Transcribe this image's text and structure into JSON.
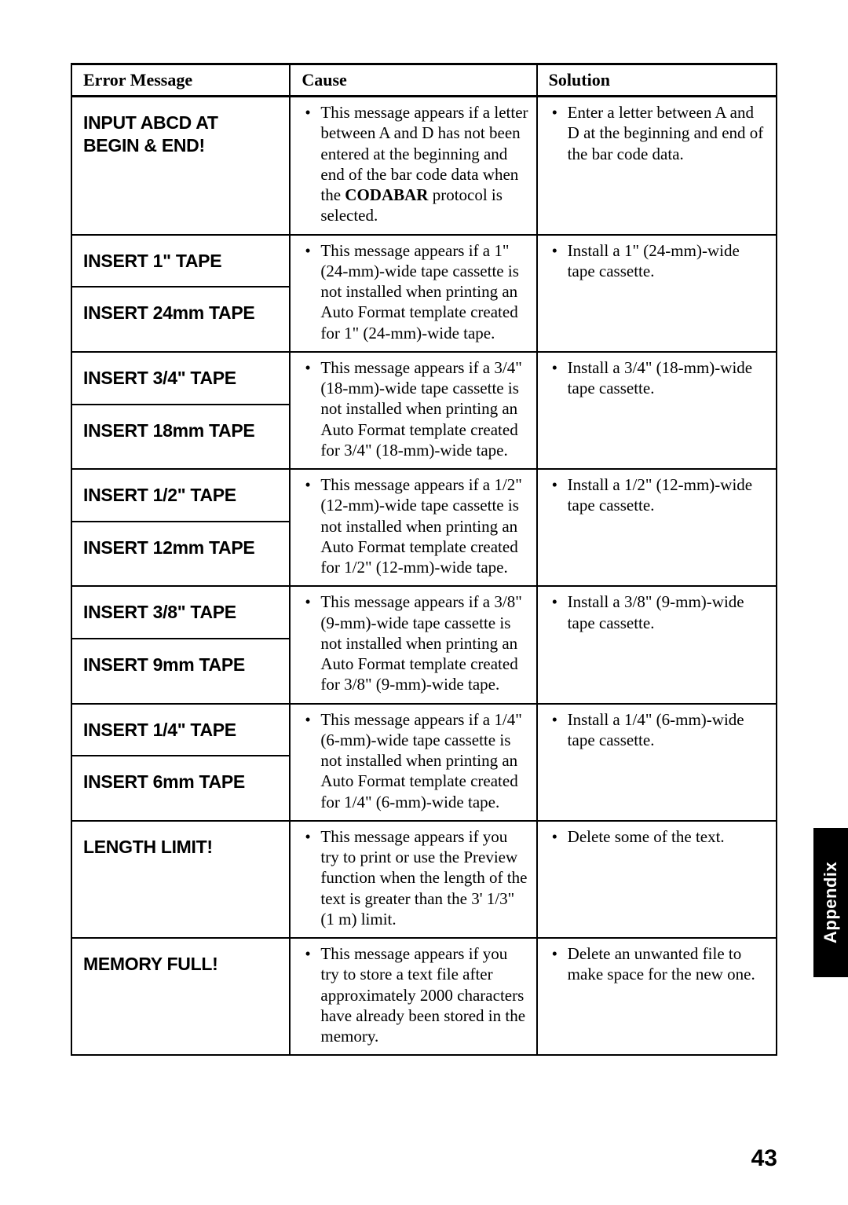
{
  "headers": {
    "error": "Error Message",
    "cause": "Cause",
    "solution": "Solution"
  },
  "rows": [
    {
      "messages": [
        "INPUT ABCD AT BEGIN & END!"
      ],
      "cause_html": "This message appears if a letter between A and D has not been entered at the beginning and end of the bar code data when the <strong>CODABAR</strong> protocol is selected.",
      "solution": "Enter a letter between A and D at the beginning and end of the bar code data."
    },
    {
      "messages": [
        "INSERT 1\" TAPE",
        "INSERT 24mm TAPE"
      ],
      "cause_html": "This message appears if a 1\" (24-mm)-wide tape cassette is not installed when printing an Auto Format template created for 1\" (24-mm)-wide tape.",
      "solution": "Install a 1\" (24-mm)-wide tape cassette."
    },
    {
      "messages": [
        "INSERT 3/4\" TAPE",
        "INSERT 18mm TAPE"
      ],
      "cause_html": "This message appears if a 3/4\" (18-mm)-wide tape cassette is not installed when printing an Auto Format template created for 3/4\" (18-mm)-wide tape.",
      "solution": "Install a 3/4\" (18-mm)-wide tape cassette."
    },
    {
      "messages": [
        "INSERT 1/2\" TAPE",
        "INSERT 12mm TAPE"
      ],
      "cause_html": "This message appears if a 1/2\" (12-mm)-wide tape cassette is not installed when printing an Auto Format template created for 1/2\" (12-mm)-wide tape.",
      "solution": "Install a 1/2\" (12-mm)-wide tape cassette."
    },
    {
      "messages": [
        "INSERT 3/8\" TAPE",
        "INSERT 9mm TAPE"
      ],
      "cause_html": "This message appears if a 3/8\" (9-mm)-wide tape cassette is not installed when printing an Auto Format template created for 3/8\" (9-mm)-wide tape.",
      "solution": "Install a 3/8\" (9-mm)-wide tape cassette."
    },
    {
      "messages": [
        "INSERT 1/4\" TAPE",
        "INSERT 6mm TAPE"
      ],
      "cause_html": "This message appears if a 1/4\" (6-mm)-wide tape cassette is not installed when printing an Auto Format template created for 1/4\" (6-mm)-wide tape.",
      "solution": "Install a 1/4\" (6-mm)-wide tape cassette."
    },
    {
      "messages": [
        "LENGTH LIMIT!"
      ],
      "cause_html": "This message appears if you try to print or use the Preview function when the length of the text is greater than the 3' 1/3\" (1 m) limit.",
      "solution": "Delete some of the text."
    },
    {
      "messages": [
        "MEMORY FULL!"
      ],
      "cause_html": "This message appears if you try to store a text file after approximately 2000 characters have already been stored in the memory.",
      "solution": "Delete an unwanted file to make space for the new one."
    }
  ],
  "side_tab": "Appendix",
  "page_number": "43"
}
